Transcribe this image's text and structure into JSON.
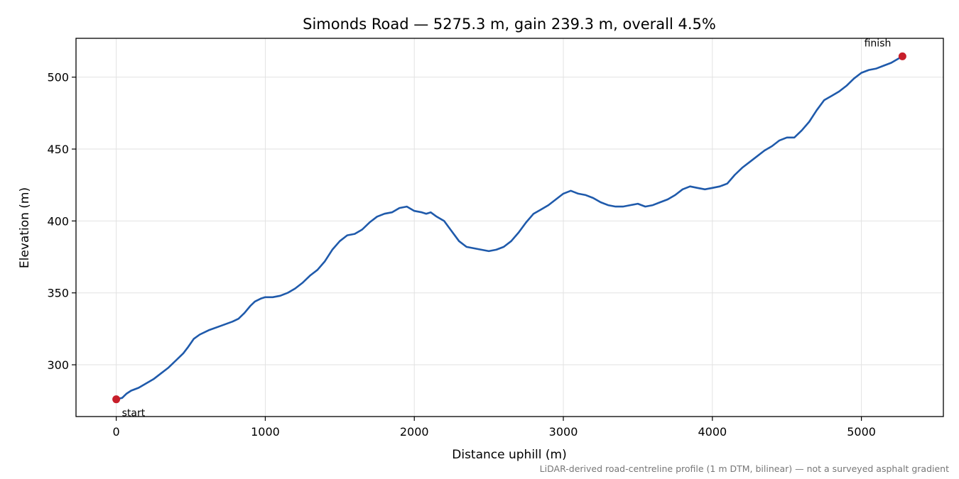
{
  "chart_data": {
    "type": "line",
    "title": "Simonds Road — 5275.3 m, gain 239.3 m, overall 4.5%",
    "xlabel": "Distance uphill (m)",
    "ylabel": "Elevation (m)",
    "xlim": [
      -270,
      5550
    ],
    "ylim": [
      264,
      527
    ],
    "xticks": [
      0,
      1000,
      2000,
      3000,
      4000,
      5000
    ],
    "yticks": [
      300,
      350,
      400,
      450,
      500
    ],
    "grid": true,
    "caption": "LiDAR-derived road-centreline profile (1 m DTM, bilinear) — not a surveyed asphalt gradient",
    "series": [
      {
        "color": "#1f5aab",
        "points": [
          [
            0,
            276
          ],
          [
            40,
            277
          ],
          [
            70,
            280
          ],
          [
            100,
            282
          ],
          [
            150,
            284
          ],
          [
            200,
            287
          ],
          [
            250,
            290
          ],
          [
            300,
            294
          ],
          [
            350,
            298
          ],
          [
            400,
            303
          ],
          [
            450,
            308
          ],
          [
            480,
            312
          ],
          [
            520,
            318
          ],
          [
            560,
            321
          ],
          [
            620,
            324
          ],
          [
            700,
            327
          ],
          [
            780,
            330
          ],
          [
            820,
            332
          ],
          [
            860,
            336
          ],
          [
            900,
            341
          ],
          [
            930,
            344
          ],
          [
            970,
            346
          ],
          [
            1000,
            347
          ],
          [
            1050,
            347
          ],
          [
            1100,
            348
          ],
          [
            1150,
            350
          ],
          [
            1200,
            353
          ],
          [
            1250,
            357
          ],
          [
            1300,
            362
          ],
          [
            1350,
            366
          ],
          [
            1400,
            372
          ],
          [
            1450,
            380
          ],
          [
            1500,
            386
          ],
          [
            1550,
            390
          ],
          [
            1600,
            391
          ],
          [
            1650,
            394
          ],
          [
            1700,
            399
          ],
          [
            1750,
            403
          ],
          [
            1800,
            405
          ],
          [
            1850,
            406
          ],
          [
            1900,
            409
          ],
          [
            1950,
            410
          ],
          [
            2000,
            407
          ],
          [
            2050,
            406
          ],
          [
            2080,
            405
          ],
          [
            2110,
            406
          ],
          [
            2150,
            403
          ],
          [
            2200,
            400
          ],
          [
            2250,
            393
          ],
          [
            2300,
            386
          ],
          [
            2350,
            382
          ],
          [
            2400,
            381
          ],
          [
            2450,
            380
          ],
          [
            2500,
            379
          ],
          [
            2550,
            380
          ],
          [
            2600,
            382
          ],
          [
            2650,
            386
          ],
          [
            2700,
            392
          ],
          [
            2750,
            399
          ],
          [
            2800,
            405
          ],
          [
            2850,
            408
          ],
          [
            2900,
            411
          ],
          [
            2950,
            415
          ],
          [
            3000,
            419
          ],
          [
            3050,
            421
          ],
          [
            3100,
            419
          ],
          [
            3150,
            418
          ],
          [
            3200,
            416
          ],
          [
            3250,
            413
          ],
          [
            3300,
            411
          ],
          [
            3350,
            410
          ],
          [
            3400,
            410
          ],
          [
            3450,
            411
          ],
          [
            3500,
            412
          ],
          [
            3550,
            410
          ],
          [
            3600,
            411
          ],
          [
            3650,
            413
          ],
          [
            3700,
            415
          ],
          [
            3750,
            418
          ],
          [
            3800,
            422
          ],
          [
            3850,
            424
          ],
          [
            3900,
            423
          ],
          [
            3950,
            422
          ],
          [
            4000,
            423
          ],
          [
            4050,
            424
          ],
          [
            4100,
            426
          ],
          [
            4150,
            432
          ],
          [
            4200,
            437
          ],
          [
            4250,
            441
          ],
          [
            4300,
            445
          ],
          [
            4350,
            449
          ],
          [
            4400,
            452
          ],
          [
            4450,
            456
          ],
          [
            4500,
            458
          ],
          [
            4550,
            458
          ],
          [
            4600,
            463
          ],
          [
            4650,
            469
          ],
          [
            4700,
            477
          ],
          [
            4750,
            484
          ],
          [
            4800,
            487
          ],
          [
            4850,
            490
          ],
          [
            4900,
            494
          ],
          [
            4950,
            499
          ],
          [
            5000,
            503
          ],
          [
            5050,
            505
          ],
          [
            5100,
            506
          ],
          [
            5150,
            508
          ],
          [
            5200,
            510
          ],
          [
            5250,
            513
          ],
          [
            5275,
            514.5
          ]
        ]
      }
    ],
    "markers": [
      {
        "label": "start",
        "x": 0,
        "y": 276,
        "color": "#c71e2a"
      },
      {
        "label": "finish",
        "x": 5275.3,
        "y": 514.5,
        "color": "#c71e2a"
      }
    ]
  }
}
